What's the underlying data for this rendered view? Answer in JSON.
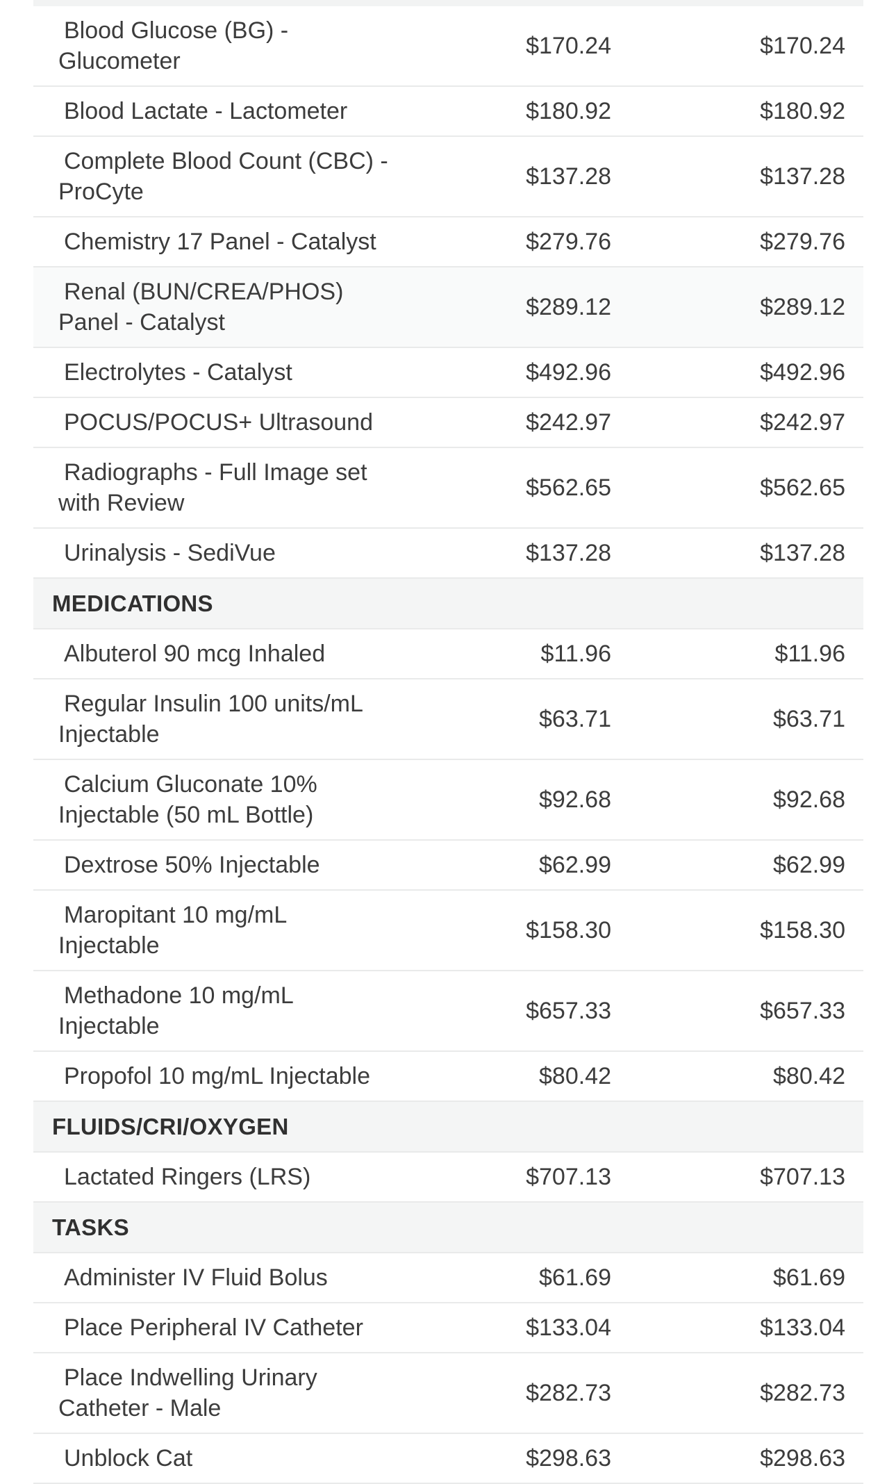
{
  "colors": {
    "page_bg": "#ffffff",
    "header_row_bg": "#f4f5f5",
    "shaded_row_bg": "#f9fafa",
    "divider": "#e9eaea",
    "text": "#3c3c3c",
    "header_text": "#303030",
    "sliver_bg": "#f2f3f3"
  },
  "price_list": {
    "rows": [
      {
        "type": "item",
        "name": "Blood Glucose (BG) -\nGlucometer",
        "price_a": "$170.24",
        "price_b": "$170.24",
        "shaded": false
      },
      {
        "type": "item",
        "name": "Blood Lactate - Lactometer",
        "price_a": "$180.92",
        "price_b": "$180.92",
        "shaded": false
      },
      {
        "type": "item",
        "name": "Complete Blood Count (CBC) -\nProCyte",
        "price_a": "$137.28",
        "price_b": "$137.28",
        "shaded": false
      },
      {
        "type": "item",
        "name": "Chemistry 17 Panel - Catalyst",
        "price_a": "$279.76",
        "price_b": "$279.76",
        "shaded": false
      },
      {
        "type": "item",
        "name": "Renal (BUN/CREA/PHOS)\nPanel - Catalyst",
        "price_a": "$289.12",
        "price_b": "$289.12",
        "shaded": true
      },
      {
        "type": "item",
        "name": "Electrolytes - Catalyst",
        "price_a": "$492.96",
        "price_b": "$492.96",
        "shaded": false
      },
      {
        "type": "item",
        "name": "POCUS/POCUS+ Ultrasound",
        "price_a": "$242.97",
        "price_b": "$242.97",
        "shaded": false
      },
      {
        "type": "item",
        "name": "Radiographs - Full Image set\nwith Review",
        "price_a": "$562.65",
        "price_b": "$562.65",
        "shaded": false
      },
      {
        "type": "item",
        "name": "Urinalysis - SediVue",
        "price_a": "$137.28",
        "price_b": "$137.28",
        "shaded": false
      },
      {
        "type": "section",
        "label": "MEDICATIONS"
      },
      {
        "type": "item",
        "name": "Albuterol 90 mcg Inhaled",
        "price_a": "$11.96",
        "price_b": "$11.96",
        "shaded": false
      },
      {
        "type": "item",
        "name": "Regular Insulin 100 units/mL\nInjectable",
        "price_a": "$63.71",
        "price_b": "$63.71",
        "shaded": false
      },
      {
        "type": "item",
        "name": "Calcium Gluconate 10%\nInjectable (50 mL Bottle)",
        "price_a": "$92.68",
        "price_b": "$92.68",
        "shaded": false
      },
      {
        "type": "item",
        "name": "Dextrose 50% Injectable",
        "price_a": "$62.99",
        "price_b": "$62.99",
        "shaded": false
      },
      {
        "type": "item",
        "name": "Maropitant 10 mg/mL\nInjectable",
        "price_a": "$158.30",
        "price_b": "$158.30",
        "shaded": false
      },
      {
        "type": "item",
        "name": "Methadone 10 mg/mL\nInjectable",
        "price_a": "$657.33",
        "price_b": "$657.33",
        "shaded": false
      },
      {
        "type": "item",
        "name": "Propofol 10 mg/mL Injectable",
        "price_a": "$80.42",
        "price_b": "$80.42",
        "shaded": false
      },
      {
        "type": "section",
        "label": "FLUIDS/CRI/OXYGEN"
      },
      {
        "type": "item",
        "name": "Lactated Ringers (LRS)",
        "price_a": "$707.13",
        "price_b": "$707.13",
        "shaded": false
      },
      {
        "type": "section",
        "label": "TASKS"
      },
      {
        "type": "item",
        "name": "Administer IV Fluid Bolus",
        "price_a": "$61.69",
        "price_b": "$61.69",
        "shaded": false
      },
      {
        "type": "item",
        "name": "Place Peripheral IV Catheter",
        "price_a": "$133.04",
        "price_b": "$133.04",
        "shaded": false
      },
      {
        "type": "item",
        "name": "Place Indwelling Urinary\nCatheter - Male",
        "price_a": "$282.73",
        "price_b": "$282.73",
        "shaded": false
      },
      {
        "type": "item",
        "name": "Unblock Cat",
        "price_a": "$298.63",
        "price_b": "$298.63",
        "shaded": false,
        "clipped": true
      }
    ]
  }
}
